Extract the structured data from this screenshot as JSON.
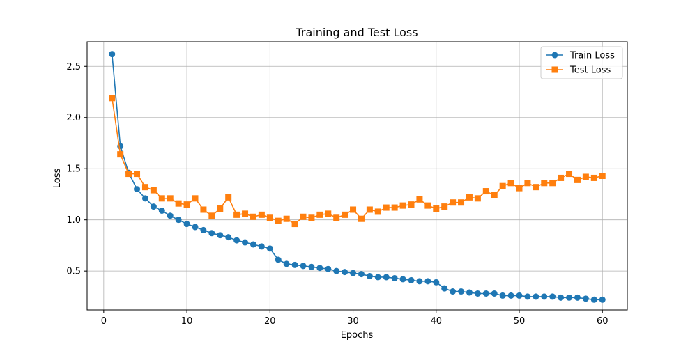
{
  "chart_data": {
    "type": "line",
    "title": "Training and Test Loss",
    "xlabel": "Epochs",
    "ylabel": "Loss",
    "xlim": [
      -2,
      63
    ],
    "ylim": [
      0.12,
      2.74
    ],
    "xticks": [
      0,
      10,
      20,
      30,
      40,
      50,
      60
    ],
    "yticks": [
      0.5,
      1.0,
      1.5,
      2.0,
      2.5
    ],
    "grid": true,
    "legend_position": "top-right",
    "x": [
      1,
      2,
      3,
      4,
      5,
      6,
      7,
      8,
      9,
      10,
      11,
      12,
      13,
      14,
      15,
      16,
      17,
      18,
      19,
      20,
      21,
      22,
      23,
      24,
      25,
      26,
      27,
      28,
      29,
      30,
      31,
      32,
      33,
      34,
      35,
      36,
      37,
      38,
      39,
      40,
      41,
      42,
      43,
      44,
      45,
      46,
      47,
      48,
      49,
      50,
      51,
      52,
      53,
      54,
      55,
      56,
      57,
      58,
      59,
      60
    ],
    "series": [
      {
        "name": "Train Loss",
        "color": "#1f77b4",
        "marker": "circle",
        "values": [
          2.62,
          1.72,
          1.46,
          1.3,
          1.21,
          1.13,
          1.09,
          1.04,
          1.0,
          0.96,
          0.93,
          0.9,
          0.87,
          0.85,
          0.83,
          0.8,
          0.78,
          0.76,
          0.74,
          0.72,
          0.61,
          0.57,
          0.56,
          0.55,
          0.54,
          0.53,
          0.52,
          0.5,
          0.49,
          0.48,
          0.47,
          0.45,
          0.44,
          0.44,
          0.43,
          0.42,
          0.41,
          0.4,
          0.4,
          0.39,
          0.33,
          0.3,
          0.3,
          0.29,
          0.28,
          0.28,
          0.28,
          0.26,
          0.26,
          0.26,
          0.25,
          0.25,
          0.25,
          0.25,
          0.24,
          0.24,
          0.24,
          0.23,
          0.22,
          0.22
        ]
      },
      {
        "name": "Test Loss",
        "color": "#ff7f0e",
        "marker": "square",
        "values": [
          2.19,
          1.64,
          1.45,
          1.45,
          1.32,
          1.29,
          1.21,
          1.21,
          1.16,
          1.15,
          1.21,
          1.1,
          1.04,
          1.11,
          1.22,
          1.05,
          1.06,
          1.03,
          1.05,
          1.02,
          0.99,
          1.01,
          0.96,
          1.03,
          1.02,
          1.05,
          1.06,
          1.02,
          1.05,
          1.1,
          1.01,
          1.1,
          1.08,
          1.12,
          1.12,
          1.14,
          1.15,
          1.2,
          1.14,
          1.11,
          1.13,
          1.17,
          1.17,
          1.22,
          1.21,
          1.28,
          1.24,
          1.33,
          1.36,
          1.31,
          1.36,
          1.32,
          1.36,
          1.36,
          1.41,
          1.45,
          1.39,
          1.42,
          1.41,
          1.43
        ]
      }
    ]
  }
}
